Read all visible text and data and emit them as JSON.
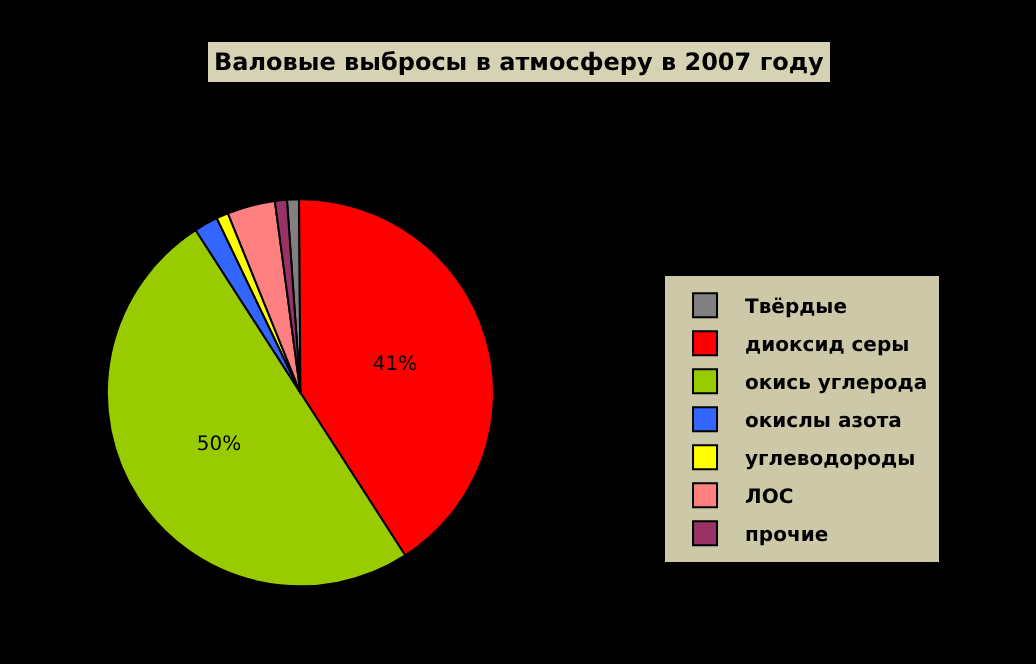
{
  "chart_data": {
    "type": "pie",
    "title": "Валовые выбросы в атмосферу в 2007 году",
    "categories": [
      "Твёрдые",
      "диоксид серы",
      "окись углерода",
      "окислы азота",
      "углеводороды",
      "ЛОС",
      "прочие"
    ],
    "values": [
      1,
      41,
      50,
      2,
      1,
      4,
      1
    ],
    "value_labels": [
      null,
      "41%",
      "50%",
      null,
      null,
      null,
      null
    ],
    "colors": [
      "#808080",
      "#ff0000",
      "#99cc00",
      "#3366ff",
      "#ffff00",
      "#ff8080",
      "#993366"
    ],
    "legend": "right"
  }
}
